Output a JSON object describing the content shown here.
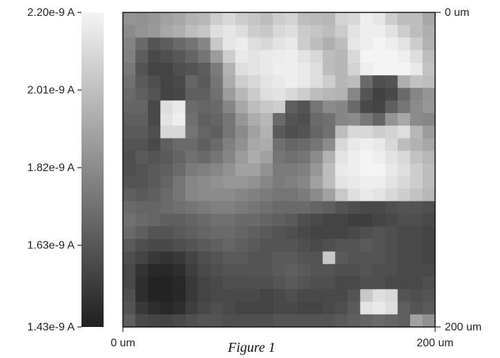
{
  "figure": {
    "caption": "Figure 1"
  },
  "chart_data": {
    "type": "heatmap",
    "title": "",
    "colorbar": {
      "min": 1.43e-09,
      "max": 2.2e-09,
      "ticks": [
        {
          "value": 2.2e-09,
          "label": "2.20e-9 A"
        },
        {
          "value": 2.01e-09,
          "label": "2.01e-9 A"
        },
        {
          "value": 1.82e-09,
          "label": "1.82e-9 A"
        },
        {
          "value": 1.63e-09,
          "label": "1.63e-9 A"
        },
        {
          "value": 1.43e-09,
          "label": "1.43e-9 A"
        }
      ],
      "colors": [
        "#202020",
        "#f4f4f4"
      ]
    },
    "x_axis": {
      "range": [
        0,
        200
      ],
      "ticks": [
        {
          "value": 0,
          "label": "0 um"
        },
        {
          "value": 200,
          "label": "200 um"
        }
      ]
    },
    "y_axis": {
      "range": [
        0,
        200
      ],
      "ticks": [
        {
          "value": 0,
          "label": "0 um"
        },
        {
          "value": 200,
          "label": "200 um"
        }
      ]
    },
    "rows": 25,
    "cols": 25,
    "z": [
      [
        1.85,
        1.84,
        1.86,
        1.9,
        1.92,
        1.96,
        1.98,
        2.06,
        2.1,
        2.06,
        2.03,
        2.0,
        2.06,
        2.08,
        2.0,
        1.99,
        1.98,
        2.08,
        2.1,
        2.18,
        2.15,
        2.06,
        2.0,
        2.0,
        1.92
      ],
      [
        1.82,
        1.85,
        1.87,
        1.92,
        1.95,
        2.0,
        2.03,
        2.12,
        2.15,
        2.12,
        2.06,
        2.04,
        2.1,
        2.12,
        2.05,
        2.03,
        2.0,
        2.05,
        2.14,
        2.18,
        2.18,
        2.14,
        2.06,
        2.0,
        1.95
      ],
      [
        1.79,
        1.7,
        1.62,
        1.65,
        1.7,
        1.73,
        1.8,
        2.04,
        2.15,
        2.17,
        2.12,
        2.1,
        2.14,
        2.16,
        2.06,
        2.0,
        1.95,
        2.0,
        2.15,
        2.18,
        2.2,
        2.18,
        2.14,
        2.06,
        1.96
      ],
      [
        1.78,
        1.65,
        1.58,
        1.6,
        1.63,
        1.68,
        1.74,
        1.88,
        2.06,
        2.16,
        2.14,
        2.16,
        2.17,
        2.18,
        2.14,
        2.1,
        2.0,
        1.98,
        2.1,
        2.2,
        2.2,
        2.2,
        2.18,
        2.12,
        2.0
      ],
      [
        1.75,
        1.62,
        1.56,
        1.56,
        1.6,
        1.62,
        1.65,
        1.76,
        1.96,
        2.12,
        2.14,
        2.16,
        2.18,
        2.18,
        2.16,
        2.12,
        2.0,
        1.98,
        2.08,
        2.18,
        2.2,
        2.2,
        2.2,
        2.16,
        2.02
      ],
      [
        1.72,
        1.64,
        1.6,
        1.56,
        1.58,
        1.68,
        1.64,
        1.74,
        1.94,
        2.06,
        2.1,
        2.14,
        2.16,
        2.18,
        2.16,
        2.12,
        2.06,
        1.98,
        2.0,
        1.7,
        1.6,
        1.62,
        1.95,
        2.02,
        2.0
      ],
      [
        1.7,
        1.66,
        1.62,
        1.56,
        1.57,
        1.66,
        1.66,
        1.72,
        1.88,
        1.98,
        2.05,
        2.12,
        2.14,
        2.1,
        2.06,
        2.0,
        1.98,
        1.96,
        1.8,
        1.62,
        1.55,
        1.58,
        1.7,
        1.8,
        1.85
      ],
      [
        1.68,
        1.68,
        1.58,
        2.12,
        2.16,
        1.7,
        1.68,
        1.7,
        1.8,
        1.92,
        2.0,
        2.04,
        2.06,
        1.66,
        1.62,
        1.74,
        1.82,
        1.8,
        1.7,
        1.58,
        1.56,
        1.66,
        1.74,
        1.82,
        1.86
      ],
      [
        1.66,
        1.66,
        1.58,
        2.14,
        2.18,
        1.72,
        1.66,
        1.68,
        1.74,
        1.86,
        1.94,
        1.98,
        1.7,
        1.62,
        1.6,
        1.7,
        1.72,
        1.8,
        1.82,
        1.75,
        1.68,
        1.85,
        1.92,
        1.82,
        1.8
      ],
      [
        1.64,
        1.64,
        1.6,
        2.1,
        2.1,
        1.74,
        1.68,
        1.66,
        1.74,
        1.82,
        1.9,
        1.96,
        1.64,
        1.6,
        1.62,
        1.68,
        1.72,
        2.0,
        2.1,
        2.1,
        2.06,
        2.08,
        2.12,
        1.98,
        1.88
      ],
      [
        1.62,
        1.62,
        1.58,
        1.66,
        1.7,
        1.7,
        1.66,
        1.7,
        1.78,
        1.84,
        1.92,
        1.94,
        1.72,
        1.68,
        1.7,
        1.74,
        1.82,
        2.1,
        2.16,
        2.18,
        2.16,
        2.1,
        2.0,
        1.96,
        1.92
      ],
      [
        1.6,
        1.64,
        1.62,
        1.64,
        1.68,
        1.72,
        1.7,
        1.74,
        1.8,
        1.88,
        1.94,
        1.9,
        1.74,
        1.72,
        1.74,
        1.82,
        1.96,
        2.14,
        2.18,
        2.2,
        2.18,
        2.14,
        2.1,
        2.02,
        1.98
      ],
      [
        1.6,
        1.62,
        1.64,
        1.66,
        1.7,
        1.76,
        1.78,
        1.8,
        1.84,
        1.9,
        1.9,
        1.84,
        1.76,
        1.76,
        1.78,
        1.86,
        2.0,
        2.16,
        2.18,
        2.2,
        2.2,
        2.16,
        2.12,
        2.06,
        2.0
      ],
      [
        1.62,
        1.62,
        1.64,
        1.68,
        1.74,
        1.8,
        1.82,
        1.84,
        1.86,
        1.86,
        1.84,
        1.8,
        1.76,
        1.78,
        1.8,
        1.9,
        2.0,
        2.14,
        2.16,
        2.18,
        2.18,
        2.14,
        2.1,
        2.06,
        2.0
      ],
      [
        1.66,
        1.64,
        1.66,
        1.7,
        1.74,
        1.8,
        1.82,
        1.82,
        1.82,
        1.8,
        1.78,
        1.76,
        1.74,
        1.74,
        1.76,
        1.82,
        1.9,
        2.04,
        2.12,
        2.16,
        2.14,
        2.1,
        2.06,
        2.02,
        1.98
      ],
      [
        1.7,
        1.68,
        1.68,
        1.7,
        1.72,
        1.74,
        1.76,
        1.78,
        1.78,
        1.76,
        1.74,
        1.72,
        1.7,
        1.7,
        1.7,
        1.68,
        1.66,
        1.62,
        1.6,
        1.58,
        1.58,
        1.6,
        1.62,
        1.62,
        1.6
      ],
      [
        1.72,
        1.7,
        1.68,
        1.66,
        1.66,
        1.68,
        1.7,
        1.72,
        1.72,
        1.7,
        1.7,
        1.68,
        1.66,
        1.64,
        1.6,
        1.58,
        1.56,
        1.56,
        1.54,
        1.54,
        1.56,
        1.58,
        1.6,
        1.6,
        1.58
      ],
      [
        1.7,
        1.66,
        1.62,
        1.62,
        1.64,
        1.66,
        1.68,
        1.7,
        1.7,
        1.68,
        1.66,
        1.64,
        1.62,
        1.6,
        1.58,
        1.56,
        1.56,
        1.56,
        1.58,
        1.6,
        1.62,
        1.6,
        1.58,
        1.58,
        1.56
      ],
      [
        1.64,
        1.6,
        1.58,
        1.58,
        1.6,
        1.62,
        1.64,
        1.66,
        1.68,
        1.66,
        1.64,
        1.62,
        1.62,
        1.62,
        1.6,
        1.58,
        1.6,
        1.62,
        1.62,
        1.64,
        1.62,
        1.6,
        1.58,
        1.58,
        1.56
      ],
      [
        1.6,
        1.56,
        1.52,
        1.5,
        1.52,
        1.56,
        1.6,
        1.62,
        1.64,
        1.64,
        1.62,
        1.62,
        1.64,
        1.64,
        1.62,
        1.62,
        2.04,
        1.64,
        1.62,
        1.62,
        1.62,
        1.6,
        1.58,
        1.58,
        1.56
      ],
      [
        1.58,
        1.5,
        1.46,
        1.46,
        1.48,
        1.54,
        1.58,
        1.6,
        1.62,
        1.62,
        1.62,
        1.62,
        1.64,
        1.66,
        1.64,
        1.62,
        1.62,
        1.6,
        1.6,
        1.62,
        1.6,
        1.6,
        1.58,
        1.58,
        1.58
      ],
      [
        1.58,
        1.48,
        1.44,
        1.44,
        1.46,
        1.52,
        1.56,
        1.58,
        1.6,
        1.6,
        1.6,
        1.6,
        1.62,
        1.64,
        1.62,
        1.6,
        1.6,
        1.58,
        1.58,
        1.6,
        1.6,
        1.58,
        1.58,
        1.58,
        1.6
      ],
      [
        1.6,
        1.48,
        1.44,
        1.44,
        1.46,
        1.52,
        1.56,
        1.58,
        1.58,
        1.58,
        1.58,
        1.56,
        1.58,
        1.6,
        1.58,
        1.58,
        1.58,
        1.58,
        1.62,
        2.04,
        2.12,
        2.1,
        1.62,
        1.6,
        1.62
      ],
      [
        1.62,
        1.52,
        1.48,
        1.46,
        1.48,
        1.54,
        1.58,
        1.6,
        1.58,
        1.56,
        1.56,
        1.56,
        1.58,
        1.58,
        1.56,
        1.56,
        1.58,
        1.6,
        1.64,
        2.14,
        2.16,
        2.12,
        1.66,
        1.62,
        1.64
      ],
      [
        1.66,
        1.58,
        1.56,
        1.56,
        1.58,
        1.6,
        1.62,
        1.62,
        1.6,
        1.6,
        1.6,
        1.6,
        1.62,
        1.62,
        1.62,
        1.62,
        1.62,
        1.64,
        1.66,
        1.68,
        1.7,
        1.68,
        1.66,
        1.9,
        1.84
      ]
    ],
    "z_scale": 1e-09,
    "grid": false,
    "legend": "colorbar-left"
  }
}
